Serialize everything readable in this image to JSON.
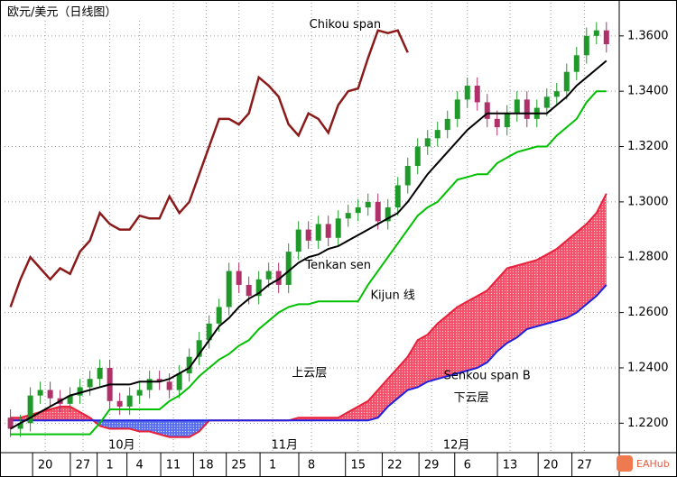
{
  "chart_data": {
    "type": "ichimoku",
    "title": "欧元/美元（日线图）",
    "watermark": "EAHub",
    "xlim": [
      -0.6,
      61.2
    ],
    "xticks": [
      {
        "value": 3.5,
        "label": "20"
      },
      {
        "value": 7.3,
        "label": "27"
      },
      {
        "value": 10,
        "label": "1"
      },
      {
        "value": 13,
        "label": "4"
      },
      {
        "value": 16.4,
        "label": "11"
      },
      {
        "value": 19.7,
        "label": "18"
      },
      {
        "value": 23,
        "label": "25"
      },
      {
        "value": 26.4,
        "label": "1"
      },
      {
        "value": 30.3,
        "label": "8"
      },
      {
        "value": 35,
        "label": "15"
      },
      {
        "value": 38.7,
        "label": "22"
      },
      {
        "value": 42.4,
        "label": "29"
      },
      {
        "value": 46,
        "label": "6"
      },
      {
        "value": 50.3,
        "label": "13"
      },
      {
        "value": 54.4,
        "label": "20"
      },
      {
        "value": 57.8,
        "label": "27"
      }
    ],
    "month_labels": [
      {
        "value": 11.2,
        "label": "10月"
      },
      {
        "value": 27.6,
        "label": "11月"
      },
      {
        "value": 44.9,
        "label": "12月"
      }
    ],
    "ylim": [
      1.21,
      1.372
    ],
    "yticks": [
      {
        "value": 1.22,
        "label": "1.2200"
      },
      {
        "value": 1.24,
        "label": "1.2400"
      },
      {
        "value": 1.26,
        "label": "1.2600"
      },
      {
        "value": 1.28,
        "label": "1.2800"
      },
      {
        "value": 1.3,
        "label": "1.3000"
      },
      {
        "value": 1.32,
        "label": "1.3200"
      },
      {
        "value": 1.34,
        "label": "1.3400"
      },
      {
        "value": 1.36,
        "label": "1.3600"
      }
    ],
    "grid": true,
    "candles": {
      "up_color": "#1f9a2a",
      "down_color": "#b0306a",
      "open": [
        1.222,
        1.218,
        1.22,
        1.23,
        1.232,
        1.229,
        1.227,
        1.23,
        1.233,
        1.236,
        1.24,
        1.228,
        1.226,
        1.23,
        1.232,
        1.236,
        1.235,
        1.232,
        1.238,
        1.244,
        1.25,
        1.256,
        1.262,
        1.275,
        1.27,
        1.266,
        1.272,
        1.275,
        1.27,
        1.282,
        1.29,
        1.286,
        1.292,
        1.287,
        1.294,
        1.296,
        1.298,
        1.3,
        1.293,
        1.298,
        1.306,
        1.313,
        1.32,
        1.323,
        1.326,
        1.33,
        1.337,
        1.342,
        1.336,
        1.33,
        1.327,
        1.332,
        1.337,
        1.33,
        1.334,
        1.338,
        1.34,
        1.347,
        1.353,
        1.36,
        1.362
      ],
      "high": [
        1.225,
        1.223,
        1.233,
        1.235,
        1.235,
        1.232,
        1.233,
        1.236,
        1.239,
        1.243,
        1.243,
        1.231,
        1.233,
        1.235,
        1.239,
        1.239,
        1.238,
        1.241,
        1.247,
        1.253,
        1.259,
        1.265,
        1.278,
        1.278,
        1.273,
        1.275,
        1.278,
        1.278,
        1.285,
        1.293,
        1.293,
        1.295,
        1.295,
        1.297,
        1.299,
        1.301,
        1.303,
        1.303,
        1.301,
        1.309,
        1.316,
        1.323,
        1.326,
        1.329,
        1.333,
        1.34,
        1.345,
        1.345,
        1.339,
        1.333,
        1.335,
        1.34,
        1.34,
        1.337,
        1.341,
        1.343,
        1.35,
        1.356,
        1.363,
        1.365,
        1.365
      ],
      "low": [
        1.215,
        1.215,
        1.217,
        1.227,
        1.226,
        1.224,
        1.224,
        1.227,
        1.23,
        1.233,
        1.225,
        1.223,
        1.223,
        1.227,
        1.229,
        1.232,
        1.229,
        1.229,
        1.235,
        1.241,
        1.247,
        1.253,
        1.259,
        1.267,
        1.263,
        1.263,
        1.269,
        1.267,
        1.267,
        1.279,
        1.283,
        1.283,
        1.284,
        1.284,
        1.291,
        1.293,
        1.295,
        1.29,
        1.29,
        1.295,
        1.303,
        1.31,
        1.317,
        1.32,
        1.323,
        1.327,
        1.334,
        1.333,
        1.327,
        1.324,
        1.324,
        1.329,
        1.327,
        1.327,
        1.331,
        1.335,
        1.337,
        1.344,
        1.35,
        1.357,
        1.354
      ],
      "close": [
        1.218,
        1.22,
        1.23,
        1.232,
        1.229,
        1.227,
        1.23,
        1.233,
        1.236,
        1.24,
        1.228,
        1.226,
        1.23,
        1.232,
        1.236,
        1.235,
        1.232,
        1.238,
        1.244,
        1.25,
        1.256,
        1.262,
        1.275,
        1.27,
        1.266,
        1.272,
        1.275,
        1.27,
        1.282,
        1.29,
        1.286,
        1.292,
        1.287,
        1.294,
        1.296,
        1.298,
        1.3,
        1.293,
        1.298,
        1.306,
        1.313,
        1.32,
        1.323,
        1.326,
        1.33,
        1.337,
        1.342,
        1.336,
        1.33,
        1.327,
        1.332,
        1.337,
        1.33,
        1.334,
        1.338,
        1.34,
        1.347,
        1.353,
        1.36,
        1.362,
        1.357
      ]
    },
    "lines": {
      "tenkan": {
        "color": "#000000",
        "values": [
          1.218,
          1.22,
          1.222,
          1.224,
          1.226,
          1.228,
          1.23,
          1.231,
          1.232,
          1.233,
          1.234,
          1.234,
          1.234,
          1.235,
          1.235,
          1.235,
          1.236,
          1.238,
          1.24,
          1.245,
          1.25,
          1.255,
          1.258,
          1.262,
          1.265,
          1.267,
          1.27,
          1.272,
          1.275,
          1.278,
          1.28,
          1.281,
          1.283,
          1.284,
          1.286,
          1.288,
          1.29,
          1.292,
          1.294,
          1.296,
          1.3,
          1.305,
          1.31,
          1.314,
          1.318,
          1.322,
          1.326,
          1.329,
          1.332,
          1.332,
          1.332,
          1.332,
          1.332,
          1.332,
          1.332,
          1.335,
          1.338,
          1.342,
          1.345,
          1.348,
          1.351
        ]
      },
      "kijun": {
        "color": "#00c000",
        "values": [
          1.216,
          1.216,
          1.216,
          1.216,
          1.216,
          1.216,
          1.216,
          1.216,
          1.216,
          1.22,
          1.225,
          1.225,
          1.225,
          1.225,
          1.225,
          1.225,
          1.228,
          1.23,
          1.233,
          1.237,
          1.24,
          1.243,
          1.245,
          1.248,
          1.25,
          1.254,
          1.257,
          1.26,
          1.262,
          1.263,
          1.263,
          1.264,
          1.264,
          1.264,
          1.264,
          1.264,
          1.27,
          1.275,
          1.28,
          1.285,
          1.29,
          1.295,
          1.298,
          1.3,
          1.304,
          1.308,
          1.309,
          1.31,
          1.31,
          1.314,
          1.316,
          1.318,
          1.319,
          1.32,
          1.32,
          1.324,
          1.327,
          1.33,
          1.336,
          1.34,
          1.34
        ]
      },
      "chikou": {
        "color": "#8b1a1a",
        "values": [
          1.262,
          1.272,
          1.28,
          1.276,
          1.272,
          1.276,
          1.274,
          1.282,
          1.286,
          1.296,
          1.292,
          1.29,
          1.29,
          1.295,
          1.294,
          1.294,
          1.302,
          1.296,
          1.3,
          1.31,
          1.32,
          1.33,
          1.33,
          1.328,
          1.332,
          1.345,
          1.342,
          1.338,
          1.328,
          1.324,
          1.332,
          1.33,
          1.325,
          1.335,
          1.34,
          1.341,
          1.352,
          1.362,
          1.361,
          1.362,
          1.354,
          null,
          null,
          null,
          null,
          null,
          null,
          null,
          null,
          null,
          null,
          null,
          null,
          null,
          null,
          null,
          null,
          null,
          null,
          null,
          null
        ]
      },
      "senkou_a": {
        "color": "#e8203a",
        "values": [
          1.222,
          1.222,
          1.223,
          1.224,
          1.225,
          1.226,
          1.226,
          1.224,
          1.222,
          1.219,
          1.218,
          1.218,
          1.218,
          1.217,
          1.217,
          1.216,
          1.215,
          1.215,
          1.215,
          1.217,
          1.221,
          1.221,
          1.221,
          1.221,
          1.221,
          1.221,
          1.221,
          1.221,
          1.221,
          1.222,
          1.222,
          1.222,
          1.222,
          1.222,
          1.224,
          1.226,
          1.228,
          1.232,
          1.236,
          1.24,
          1.244,
          1.25,
          1.252,
          1.256,
          1.259,
          1.262,
          1.264,
          1.266,
          1.268,
          1.272,
          1.276,
          1.277,
          1.278,
          1.279,
          1.281,
          1.283,
          1.286,
          1.289,
          1.292,
          1.296,
          1.303
        ]
      },
      "senkou_b": {
        "color": "#2020e0",
        "values": [
          1.221,
          1.221,
          1.221,
          1.221,
          1.221,
          1.221,
          1.221,
          1.221,
          1.221,
          1.221,
          1.221,
          1.221,
          1.221,
          1.221,
          1.221,
          1.221,
          1.221,
          1.221,
          1.221,
          1.221,
          1.221,
          1.221,
          1.221,
          1.221,
          1.221,
          1.221,
          1.221,
          1.221,
          1.221,
          1.221,
          1.221,
          1.221,
          1.221,
          1.221,
          1.221,
          1.221,
          1.221,
          1.222,
          1.226,
          1.229,
          1.232,
          1.233,
          1.235,
          1.236,
          1.237,
          1.238,
          1.239,
          1.24,
          1.242,
          1.246,
          1.249,
          1.251,
          1.254,
          1.255,
          1.256,
          1.257,
          1.258,
          1.26,
          1.263,
          1.266,
          1.27
        ]
      }
    },
    "annotations": [
      {
        "text": "Chikou span",
        "x": 33.7,
        "y": 1.364
      },
      {
        "text": "Tenkan sen",
        "x": 33.0,
        "y": 1.277
      },
      {
        "text": "Kijun 线",
        "x": 38.5,
        "y": 1.266
      },
      {
        "text": "上云层",
        "x": 30.1,
        "y": 1.238
      },
      {
        "text": "Senkou span B",
        "x": 48.0,
        "y": 1.237
      },
      {
        "text": "下云层",
        "x": 46.4,
        "y": 1.229
      }
    ]
  }
}
